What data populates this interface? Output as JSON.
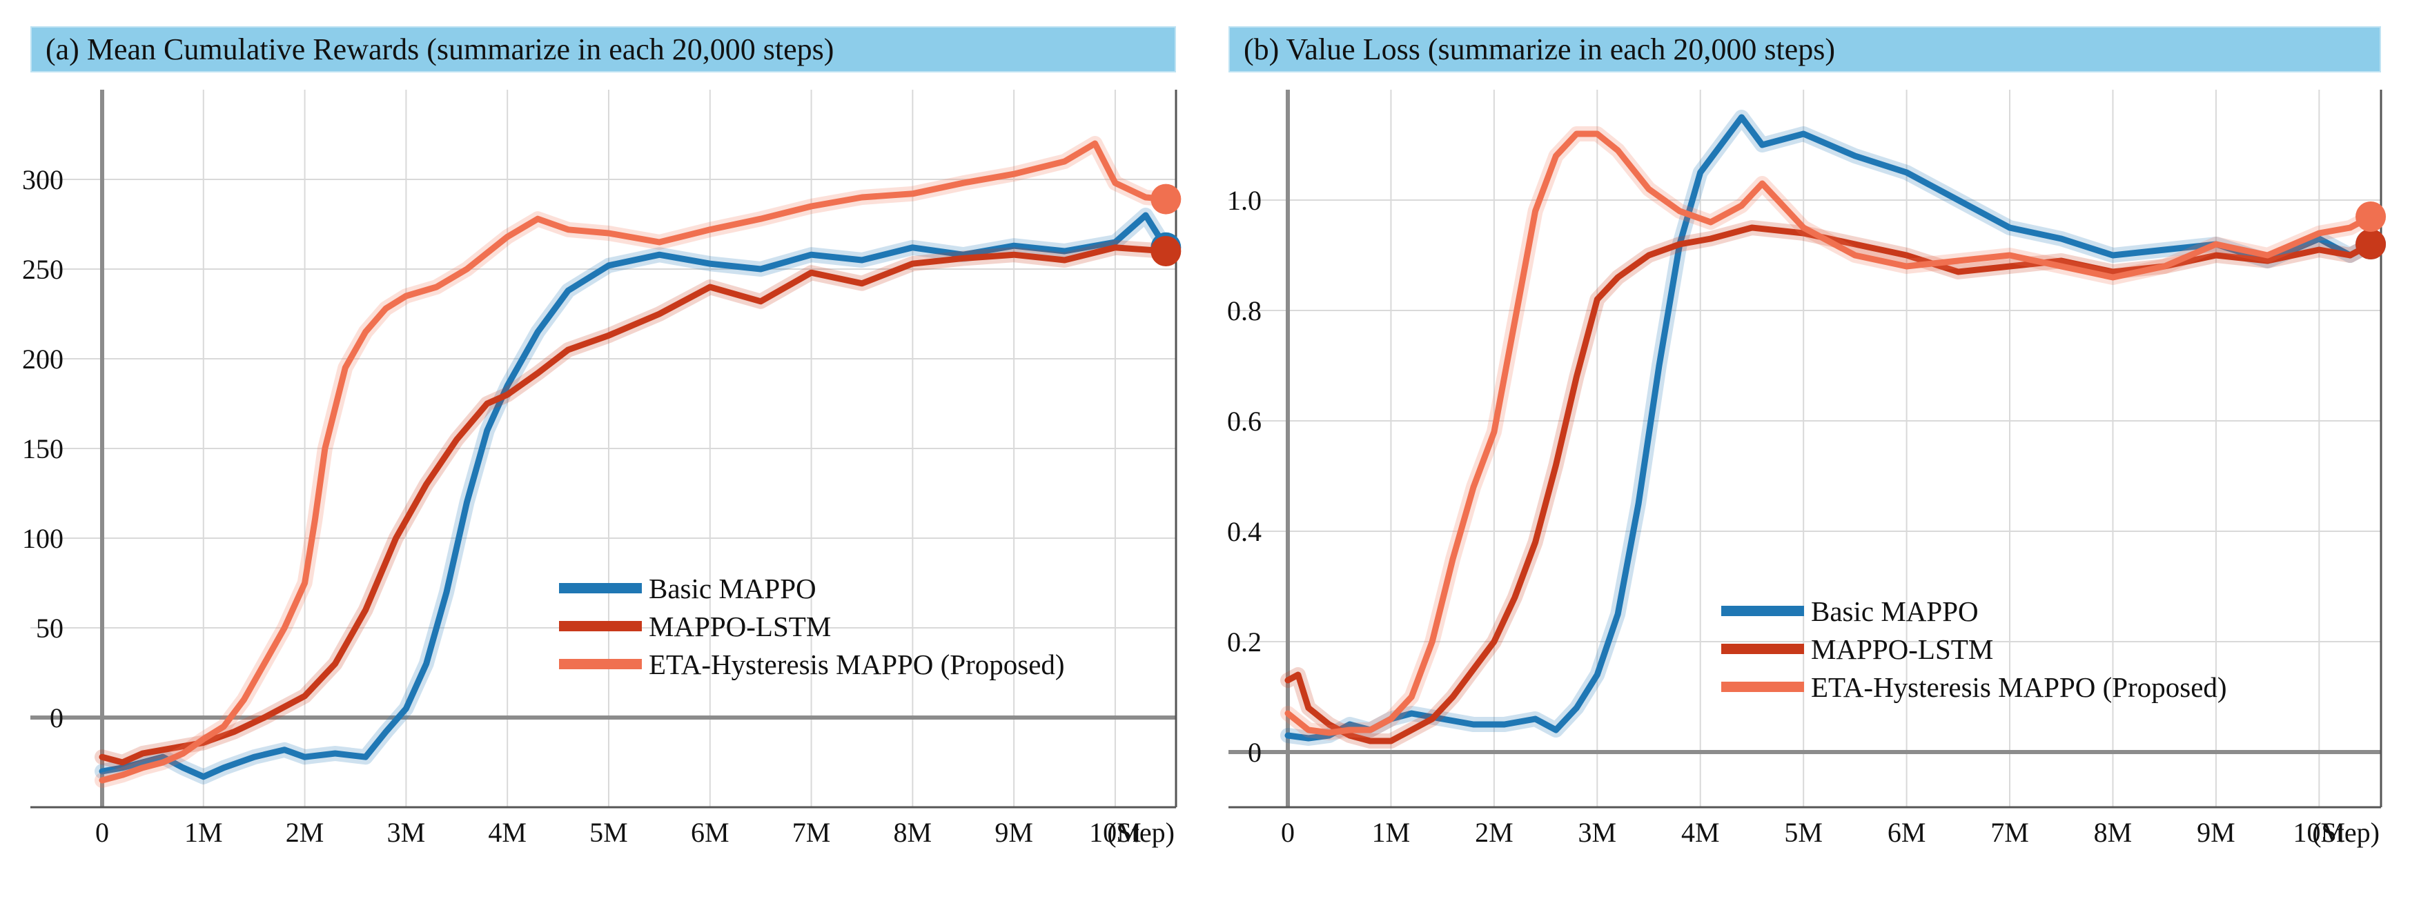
{
  "chart_data": [
    {
      "type": "line",
      "title": "(a) Mean Cumulative Rewards (summarize in each 20,000 steps)",
      "xlabel": "(Step)",
      "ylabel": "",
      "xlim": [
        0,
        10.6
      ],
      "ylim": [
        -50,
        350
      ],
      "grid": true,
      "legend_position": "center-right",
      "x_ticks": [
        0,
        1,
        2,
        3,
        4,
        5,
        6,
        7,
        8,
        9,
        10
      ],
      "x_tick_labels": [
        "0",
        "1M",
        "2M",
        "3M",
        "4M",
        "5M",
        "6M",
        "7M",
        "8M",
        "9M",
        "10M"
      ],
      "y_ticks": [
        0,
        50,
        100,
        150,
        200,
        250,
        300
      ],
      "y_tick_labels": [
        "0",
        "50",
        "100",
        "150",
        "200",
        "250",
        "300"
      ],
      "series": [
        {
          "name": "Basic MAPPO",
          "color": "#1f77b4",
          "x": [
            0,
            0.2,
            0.4,
            0.6,
            0.8,
            1.0,
            1.2,
            1.5,
            1.8,
            2.0,
            2.3,
            2.6,
            2.8,
            3.0,
            3.2,
            3.4,
            3.6,
            3.8,
            4.0,
            4.3,
            4.6,
            5.0,
            5.5,
            6.0,
            6.5,
            7.0,
            7.5,
            8.0,
            8.5,
            9.0,
            9.5,
            10.0,
            10.3,
            10.5
          ],
          "y": [
            -30,
            -28,
            -25,
            -22,
            -28,
            -33,
            -28,
            -22,
            -18,
            -22,
            -20,
            -22,
            -8,
            5,
            30,
            70,
            120,
            160,
            185,
            215,
            238,
            252,
            258,
            253,
            250,
            258,
            255,
            262,
            258,
            263,
            260,
            265,
            280,
            262
          ]
        },
        {
          "name": "MAPPO-LSTM",
          "color": "#c8391a",
          "x": [
            0,
            0.2,
            0.4,
            0.6,
            0.8,
            1.0,
            1.3,
            1.6,
            2.0,
            2.3,
            2.6,
            2.9,
            3.2,
            3.5,
            3.8,
            4.0,
            4.3,
            4.6,
            5.0,
            5.5,
            6.0,
            6.5,
            7.0,
            7.5,
            8.0,
            8.5,
            9.0,
            9.5,
            10.0,
            10.5
          ],
          "y": [
            -22,
            -25,
            -20,
            -18,
            -16,
            -14,
            -8,
            0,
            12,
            30,
            60,
            100,
            130,
            155,
            175,
            180,
            192,
            205,
            213,
            225,
            240,
            232,
            248,
            242,
            253,
            256,
            258,
            255,
            262,
            260
          ]
        },
        {
          "name": "ETA-Hysteresis MAPPO (Proposed)",
          "color": "#f07050",
          "x": [
            0,
            0.2,
            0.4,
            0.6,
            0.8,
            1.0,
            1.2,
            1.4,
            1.6,
            1.8,
            2.0,
            2.1,
            2.2,
            2.4,
            2.6,
            2.8,
            3.0,
            3.3,
            3.6,
            4.0,
            4.3,
            4.6,
            5.0,
            5.5,
            6.0,
            6.5,
            7.0,
            7.5,
            8.0,
            8.5,
            9.0,
            9.5,
            9.8,
            10.0,
            10.3,
            10.5
          ],
          "y": [
            -35,
            -32,
            -28,
            -25,
            -20,
            -12,
            -5,
            10,
            30,
            50,
            75,
            110,
            150,
            195,
            215,
            228,
            235,
            240,
            250,
            268,
            278,
            272,
            270,
            265,
            272,
            278,
            285,
            290,
            292,
            298,
            303,
            310,
            320,
            298,
            290,
            289
          ]
        }
      ]
    },
    {
      "type": "line",
      "title": "(b) Value Loss (summarize in each 20,000 steps)",
      "xlabel": "(Step)",
      "ylabel": "",
      "xlim": [
        0,
        10.6
      ],
      "ylim": [
        -0.1,
        1.2
      ],
      "grid": true,
      "legend_position": "bottom-right",
      "x_ticks": [
        0,
        1,
        2,
        3,
        4,
        5,
        6,
        7,
        8,
        9,
        10
      ],
      "x_tick_labels": [
        "0",
        "1M",
        "2M",
        "3M",
        "4M",
        "5M",
        "6M",
        "7M",
        "8M",
        "9M",
        "10M"
      ],
      "y_ticks": [
        0,
        0.2,
        0.4,
        0.6,
        0.8,
        1.0
      ],
      "y_tick_labels": [
        "0",
        "0.2",
        "0.4",
        "0.6",
        "0.8",
        "1.0"
      ],
      "series": [
        {
          "name": "Basic MAPPO",
          "color": "#1f77b4",
          "x": [
            0,
            0.2,
            0.4,
            0.6,
            0.8,
            1.0,
            1.2,
            1.5,
            1.8,
            2.1,
            2.4,
            2.6,
            2.8,
            3.0,
            3.2,
            3.4,
            3.6,
            3.8,
            4.0,
            4.2,
            4.4,
            4.6,
            4.8,
            5.0,
            5.5,
            6.0,
            6.5,
            7.0,
            7.5,
            8.0,
            8.5,
            9.0,
            9.5,
            10.0,
            10.3,
            10.5
          ],
          "y": [
            0.03,
            0.025,
            0.03,
            0.05,
            0.04,
            0.06,
            0.07,
            0.06,
            0.05,
            0.05,
            0.06,
            0.04,
            0.08,
            0.14,
            0.25,
            0.45,
            0.7,
            0.92,
            1.05,
            1.1,
            1.15,
            1.1,
            1.11,
            1.12,
            1.08,
            1.05,
            1.0,
            0.95,
            0.93,
            0.9,
            0.91,
            0.92,
            0.89,
            0.93,
            0.9,
            0.92
          ]
        },
        {
          "name": "MAPPO-LSTM",
          "color": "#c8391a",
          "x": [
            0,
            0.1,
            0.2,
            0.4,
            0.6,
            0.8,
            1.0,
            1.2,
            1.4,
            1.6,
            1.8,
            2.0,
            2.2,
            2.4,
            2.6,
            2.8,
            3.0,
            3.2,
            3.5,
            3.8,
            4.1,
            4.5,
            5.0,
            5.5,
            6.0,
            6.5,
            7.0,
            7.5,
            8.0,
            8.5,
            9.0,
            9.5,
            10.0,
            10.3,
            10.5
          ],
          "y": [
            0.13,
            0.14,
            0.08,
            0.05,
            0.03,
            0.02,
            0.02,
            0.04,
            0.06,
            0.1,
            0.15,
            0.2,
            0.28,
            0.38,
            0.52,
            0.68,
            0.82,
            0.86,
            0.9,
            0.92,
            0.93,
            0.95,
            0.94,
            0.92,
            0.9,
            0.87,
            0.88,
            0.89,
            0.87,
            0.88,
            0.9,
            0.89,
            0.91,
            0.9,
            0.92
          ]
        },
        {
          "name": "ETA-Hysteresis MAPPO (Proposed)",
          "color": "#f07050",
          "x": [
            0,
            0.2,
            0.4,
            0.6,
            0.8,
            1.0,
            1.2,
            1.4,
            1.6,
            1.8,
            2.0,
            2.2,
            2.4,
            2.6,
            2.8,
            3.0,
            3.2,
            3.5,
            3.8,
            4.1,
            4.4,
            4.6,
            5.0,
            5.5,
            6.0,
            6.5,
            7.0,
            7.5,
            8.0,
            8.5,
            9.0,
            9.5,
            10.0,
            10.3,
            10.5
          ],
          "y": [
            0.07,
            0.04,
            0.035,
            0.04,
            0.04,
            0.06,
            0.1,
            0.2,
            0.35,
            0.48,
            0.58,
            0.78,
            0.98,
            1.08,
            1.12,
            1.12,
            1.09,
            1.02,
            0.98,
            0.96,
            0.99,
            1.03,
            0.95,
            0.9,
            0.88,
            0.89,
            0.9,
            0.88,
            0.86,
            0.88,
            0.92,
            0.9,
            0.94,
            0.95,
            0.97
          ]
        }
      ]
    }
  ],
  "panel_a": {
    "title": "(a) Mean Cumulative Rewards (summarize in each 20,000 steps)",
    "legend": [
      {
        "label": "Basic MAPPO",
        "color": "#1f77b4"
      },
      {
        "label": "MAPPO-LSTM",
        "color": "#c8391a"
      },
      {
        "label": "ETA-Hysteresis MAPPO (Proposed)",
        "color": "#f07050"
      }
    ]
  },
  "panel_b": {
    "title": "(b) Value Loss (summarize in each 20,000 steps)",
    "legend": [
      {
        "label": "Basic MAPPO",
        "color": "#1f77b4"
      },
      {
        "label": "MAPPO-LSTM",
        "color": "#c8391a"
      },
      {
        "label": "ETA-Hysteresis MAPPO (Proposed)",
        "color": "#f07050"
      }
    ]
  }
}
